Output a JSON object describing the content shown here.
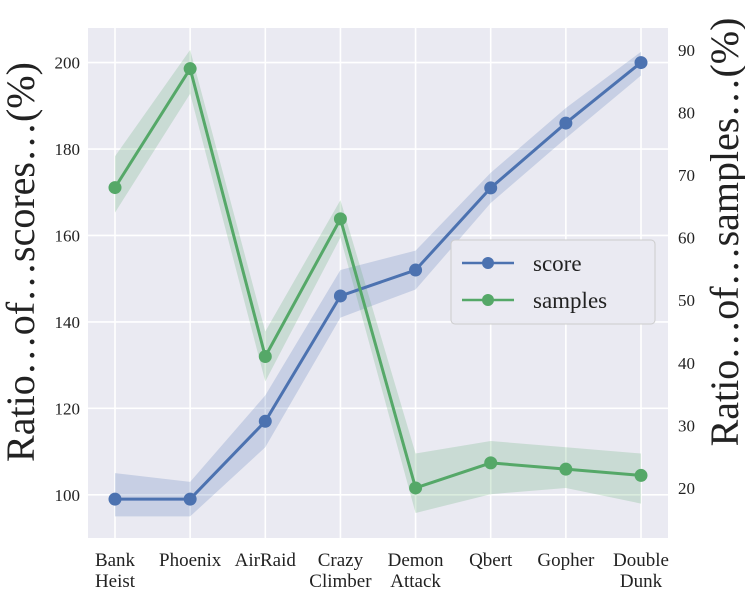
{
  "chart_data": {
    "type": "line",
    "categories": [
      [
        "Bank",
        "Heist"
      ],
      [
        "Phoenix"
      ],
      [
        "AirRaid"
      ],
      [
        "Crazy",
        "Climber"
      ],
      [
        "Demon",
        "Attack"
      ],
      [
        "Qbert"
      ],
      [
        "Gopher"
      ],
      [
        "Double",
        "Dunk"
      ]
    ],
    "ylabel_left": "Ratio…of…scores…(%)",
    "ylabel_right": "Ratio…of…samples…(%)",
    "y_left_lim": [
      90,
      208
    ],
    "y_right_lim": [
      12,
      93.5
    ],
    "y_left_ticks": [
      100,
      120,
      140,
      160,
      180,
      200
    ],
    "y_right_ticks": [
      20,
      30,
      40,
      50,
      60,
      70,
      80,
      90
    ],
    "grid": true,
    "legend_position": "center-right",
    "series": [
      {
        "name": "score",
        "axis": "left",
        "color": "#4c72b0",
        "values": [
          99,
          99,
          117,
          146,
          152,
          171,
          186,
          200
        ],
        "band_low": [
          95,
          95,
          111,
          141,
          147.5,
          167.5,
          182.5,
          197
        ],
        "band_high": [
          105,
          103,
          123,
          152,
          156.5,
          174.5,
          189.5,
          202.5
        ]
      },
      {
        "name": "samples",
        "axis": "right",
        "color": "#55a868",
        "values": [
          68,
          87,
          41,
          63,
          20,
          24,
          23,
          22
        ],
        "band_low": [
          64,
          83,
          37,
          60,
          16,
          19,
          20,
          17.5
        ],
        "band_high": [
          73,
          90,
          45,
          66,
          25.5,
          27.5,
          26.5,
          25.5
        ]
      }
    ]
  }
}
